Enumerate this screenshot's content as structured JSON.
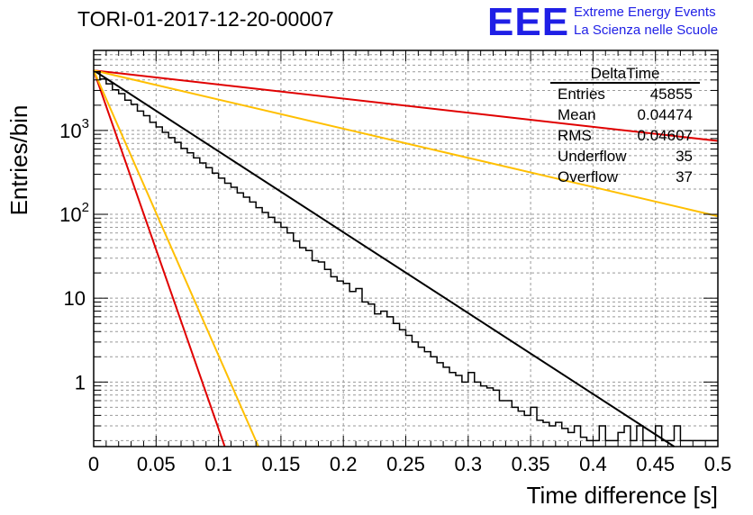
{
  "title": "TORI-01-2017-12-20-00007",
  "logo": {
    "mark": "EEE",
    "line1": "Extreme Energy Events",
    "line2": "La Scienza nelle Scuole",
    "color": "#1f1fe6"
  },
  "stats": {
    "name": "DeltaTime",
    "rows": [
      {
        "label": "Entries",
        "value": "45855"
      },
      {
        "label": "Mean",
        "value": "0.04474"
      },
      {
        "label": "RMS",
        "value": "0.04607"
      },
      {
        "label": "Underflow",
        "value": "35"
      },
      {
        "label": "Overflow",
        "value": "37"
      }
    ]
  },
  "chart_data": {
    "type": "line",
    "xlabel": "Time difference [s]",
    "ylabel": "Entries/bin",
    "xlim": [
      0,
      0.5
    ],
    "ylim": [
      0.17,
      9000
    ],
    "yscale": "log",
    "grid": true,
    "x_ticks": [
      "0",
      "0.05",
      "0.1",
      "0.15",
      "0.2",
      "0.25",
      "0.3",
      "0.35",
      "0.4",
      "0.45",
      "0.5"
    ],
    "y_ticks": [
      {
        "value": 1,
        "label": "1"
      },
      {
        "value": 10,
        "label": "10"
      },
      {
        "value": 100,
        "label": "10^2"
      },
      {
        "value": 1000,
        "label": "10^3"
      }
    ],
    "fits": [
      {
        "color": "#000000",
        "x": [
          0,
          0.465
        ],
        "y": [
          5200,
          0.17
        ]
      },
      {
        "color": "#e00000",
        "x": [
          0,
          0.5
        ],
        "y": [
          5200,
          750
        ]
      },
      {
        "color": "#ffbf00",
        "x": [
          0,
          0.5
        ],
        "y": [
          5200,
          95
        ]
      },
      {
        "color": "#e00000",
        "x": [
          0,
          0.105
        ],
        "y": [
          5200,
          0.17
        ]
      },
      {
        "color": "#ffbf00",
        "x": [
          0,
          0.132
        ],
        "y": [
          5200,
          0.17
        ]
      }
    ],
    "histogram": {
      "color": "#000000",
      "bin_width": 0.005,
      "bins": [
        [
          0.0,
          5000
        ],
        [
          0.005,
          4100
        ],
        [
          0.01,
          3600
        ],
        [
          0.015,
          3050
        ],
        [
          0.02,
          2750
        ],
        [
          0.025,
          2300
        ],
        [
          0.03,
          2050
        ],
        [
          0.035,
          1700
        ],
        [
          0.04,
          1500
        ],
        [
          0.045,
          1250
        ],
        [
          0.05,
          1100
        ],
        [
          0.055,
          950
        ],
        [
          0.06,
          820
        ],
        [
          0.065,
          720
        ],
        [
          0.07,
          610
        ],
        [
          0.075,
          540
        ],
        [
          0.08,
          470
        ],
        [
          0.085,
          410
        ],
        [
          0.09,
          360
        ],
        [
          0.095,
          310
        ],
        [
          0.1,
          270
        ],
        [
          0.105,
          235
        ],
        [
          0.11,
          210
        ],
        [
          0.115,
          180
        ],
        [
          0.12,
          160
        ],
        [
          0.125,
          140
        ],
        [
          0.13,
          120
        ],
        [
          0.135,
          105
        ],
        [
          0.14,
          92
        ],
        [
          0.145,
          80
        ],
        [
          0.15,
          70
        ],
        [
          0.155,
          60
        ],
        [
          0.16,
          48
        ],
        [
          0.165,
          40
        ],
        [
          0.17,
          37
        ],
        [
          0.175,
          28
        ],
        [
          0.18,
          27
        ],
        [
          0.185,
          22
        ],
        [
          0.19,
          18
        ],
        [
          0.195,
          16
        ],
        [
          0.2,
          15
        ],
        [
          0.205,
          12
        ],
        [
          0.21,
          13
        ],
        [
          0.215,
          9
        ],
        [
          0.22,
          8.5
        ],
        [
          0.225,
          6.5
        ],
        [
          0.23,
          7
        ],
        [
          0.235,
          6
        ],
        [
          0.24,
          5
        ],
        [
          0.245,
          4.2
        ],
        [
          0.25,
          3.6
        ],
        [
          0.255,
          3.0
        ],
        [
          0.26,
          2.6
        ],
        [
          0.265,
          2.3
        ],
        [
          0.27,
          2.0
        ],
        [
          0.275,
          1.7
        ],
        [
          0.28,
          1.5
        ],
        [
          0.285,
          1.3
        ],
        [
          0.29,
          1.2
        ],
        [
          0.295,
          1.0
        ],
        [
          0.3,
          1.3
        ],
        [
          0.305,
          1.0
        ],
        [
          0.31,
          0.9
        ],
        [
          0.315,
          0.85
        ],
        [
          0.32,
          0.8
        ],
        [
          0.325,
          0.6
        ],
        [
          0.33,
          0.6
        ],
        [
          0.335,
          0.5
        ],
        [
          0.34,
          0.45
        ],
        [
          0.345,
          0.4
        ],
        [
          0.35,
          0.5
        ],
        [
          0.355,
          0.35
        ],
        [
          0.36,
          0.33
        ],
        [
          0.365,
          0.3
        ],
        [
          0.37,
          0.33
        ],
        [
          0.375,
          0.28
        ],
        [
          0.38,
          0.25
        ],
        [
          0.385,
          0.3
        ],
        [
          0.39,
          0.22
        ],
        [
          0.395,
          0.2
        ],
        [
          0.4,
          0.2
        ],
        [
          0.405,
          0.3
        ],
        [
          0.41,
          0.2
        ],
        [
          0.415,
          0.2
        ],
        [
          0.42,
          0.25
        ],
        [
          0.425,
          0.3
        ],
        [
          0.43,
          0.2
        ],
        [
          0.435,
          0.3
        ],
        [
          0.44,
          0.2
        ],
        [
          0.445,
          0.2
        ],
        [
          0.45,
          0.3
        ],
        [
          0.455,
          0.2
        ],
        [
          0.46,
          0.2
        ],
        [
          0.465,
          0.3
        ],
        [
          0.47,
          0.2
        ],
        [
          0.475,
          0.2
        ],
        [
          0.48,
          0.2
        ],
        [
          0.485,
          0.2
        ],
        [
          0.49,
          0.2
        ],
        [
          0.495,
          0.2
        ]
      ]
    }
  }
}
